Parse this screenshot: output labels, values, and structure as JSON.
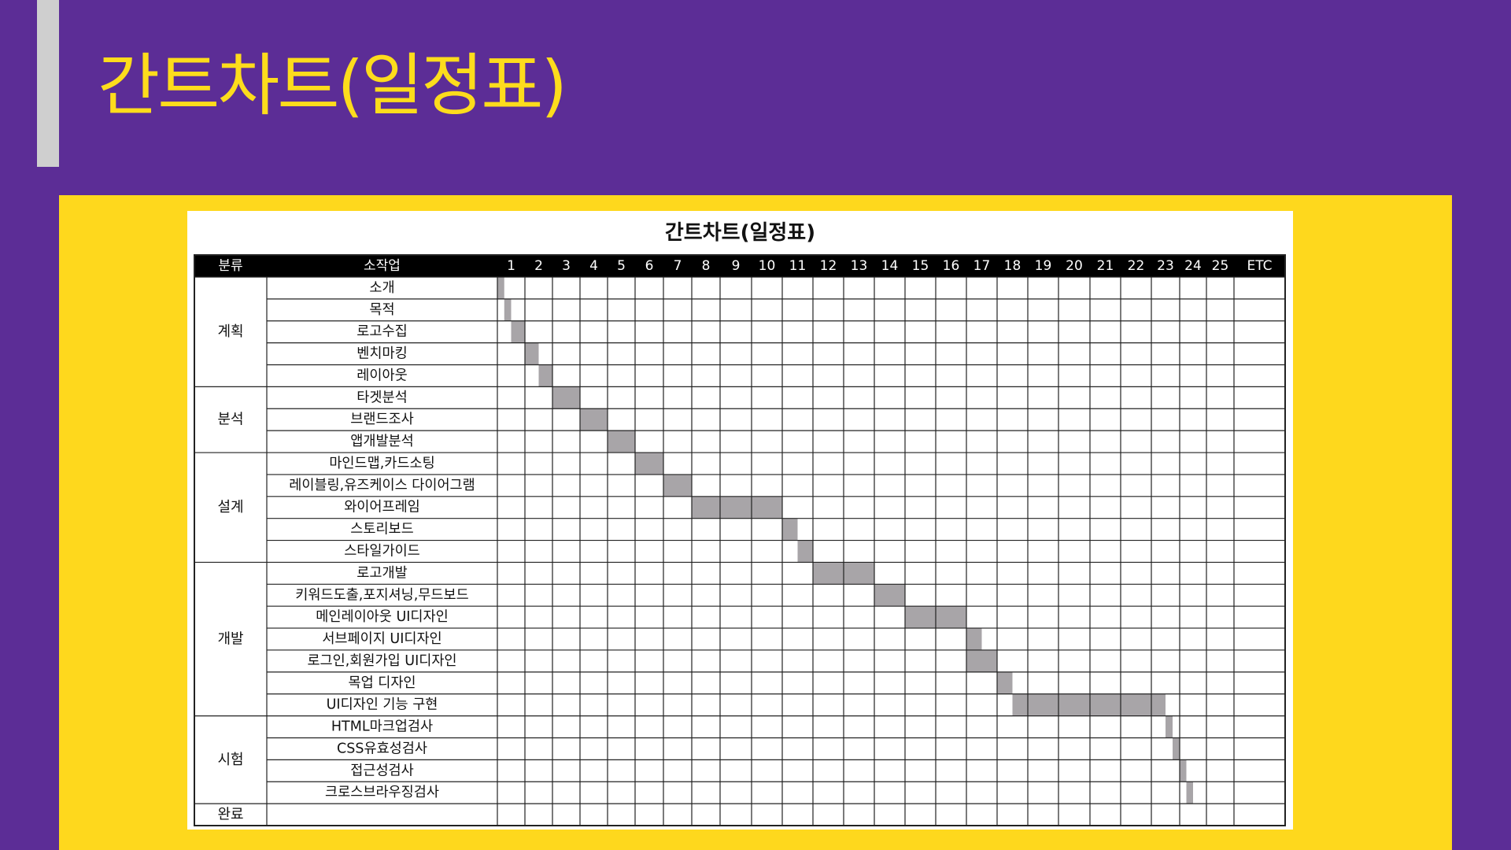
{
  "slide": {
    "title": "간트차트(일정표)"
  },
  "chart_data": {
    "type": "table",
    "title": "간트차트(일정표)",
    "headers": {
      "category": "분류",
      "task": "소작업"
    },
    "periods": [
      "1",
      "2",
      "3",
      "4",
      "5",
      "6",
      "7",
      "8",
      "9",
      "10",
      "11",
      "12",
      "13",
      "14",
      "15",
      "16",
      "17",
      "18",
      "19",
      "20",
      "21",
      "22",
      "23",
      "24",
      "25",
      "ETC"
    ],
    "categories": [
      {
        "name": "계획",
        "rows": 5
      },
      {
        "name": "분석",
        "rows": 3
      },
      {
        "name": "설계",
        "rows": 5
      },
      {
        "name": "개발",
        "rows": 7
      },
      {
        "name": "시험",
        "rows": 4
      },
      {
        "name": "완료",
        "rows": 1
      }
    ],
    "tasks": [
      {
        "name": "소개",
        "start": 1.0,
        "end": 1.25
      },
      {
        "name": "목적",
        "start": 1.25,
        "end": 1.5
      },
      {
        "name": "로고수집",
        "start": 1.5,
        "end": 2.0
      },
      {
        "name": "벤치마킹",
        "start": 2.0,
        "end": 2.5
      },
      {
        "name": "레이아웃",
        "start": 2.5,
        "end": 3.0
      },
      {
        "name": "타겟분석",
        "start": 3.0,
        "end": 4.0
      },
      {
        "name": "브랜드조사",
        "start": 4.0,
        "end": 5.0
      },
      {
        "name": "앱개발분석",
        "start": 5.0,
        "end": 6.0
      },
      {
        "name": "마인드맵,카드소팅",
        "start": 6.0,
        "end": 7.0
      },
      {
        "name": "레이블링,유즈케이스 다이어그램",
        "start": 7.0,
        "end": 8.0
      },
      {
        "name": "와이어프레임",
        "start": 8.0,
        "end": 11.0
      },
      {
        "name": "스토리보드",
        "start": 11.0,
        "end": 11.5
      },
      {
        "name": "스타일가이드",
        "start": 11.5,
        "end": 12.0
      },
      {
        "name": "로고개발",
        "start": 12.0,
        "end": 14.0
      },
      {
        "name": "키워드도출,포지셔닝,무드보드",
        "start": 14.0,
        "end": 15.0
      },
      {
        "name": "메인레이아웃 UI디자인",
        "start": 15.0,
        "end": 17.0
      },
      {
        "name": "서브페이지 UI디자인",
        "start": 17.0,
        "end": 17.5
      },
      {
        "name": "로그인,회원가입 UI디자인",
        "start": 17.0,
        "end": 18.0
      },
      {
        "name": "목업 디자인",
        "start": 18.0,
        "end": 18.5
      },
      {
        "name": "UI디자인 기능 구현",
        "start": 18.5,
        "end": 23.5
      },
      {
        "name": "HTML마크업검사",
        "start": 23.5,
        "end": 23.75
      },
      {
        "name": "CSS유효성검사",
        "start": 23.75,
        "end": 24.0
      },
      {
        "name": "접근성검사",
        "start": 24.0,
        "end": 24.25
      },
      {
        "name": "크로스브라우징검사",
        "start": 24.25,
        "end": 24.5
      },
      {
        "name": "",
        "start": null,
        "end": null
      }
    ]
  },
  "colors": {
    "background": "#5c2d96",
    "title": "#fddc1c",
    "panel": "#fed81d",
    "header_bg": "#000000",
    "bar": "#a8a5a8",
    "grid": "#222222"
  }
}
